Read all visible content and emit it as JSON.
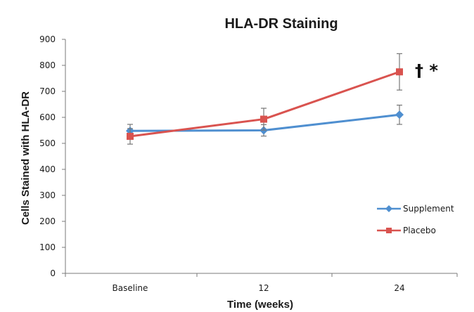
{
  "chart_data": {
    "type": "line",
    "title": "HLA-DR Staining",
    "xlabel": "Time (weeks)",
    "ylabel": "Cells Stained with HLA-DR",
    "categories": [
      "Baseline",
      "12",
      "24"
    ],
    "ylim": [
      0,
      900
    ],
    "yticks": [
      0,
      100,
      200,
      300,
      400,
      500,
      600,
      700,
      800,
      900
    ],
    "grid": false,
    "legend_position": "right",
    "series": [
      {
        "name": "Supplement",
        "color": "#4f8fd0",
        "marker": "diamond",
        "values": [
          548,
          550,
          610
        ],
        "error": [
          25,
          22,
          37
        ]
      },
      {
        "name": "Placebo",
        "color": "#d9534f",
        "marker": "square",
        "values": [
          527,
          593,
          775
        ],
        "error": [
          30,
          42,
          70
        ]
      }
    ],
    "annotations": [
      {
        "text": "† *",
        "category": "24",
        "series": "Placebo"
      }
    ]
  }
}
